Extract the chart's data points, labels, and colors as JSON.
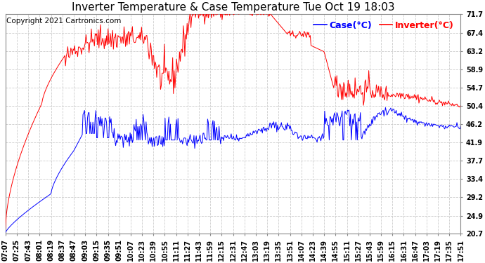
{
  "title": "Inverter Temperature & Case Temperature Tue Oct 19 18:03",
  "copyright": "Copyright 2021 Cartronics.com",
  "legend_case": "Case(°C)",
  "legend_inverter": "Inverter(°C)",
  "case_color": "blue",
  "inverter_color": "red",
  "ylim": [
    20.7,
    71.7
  ],
  "yticks": [
    20.7,
    24.9,
    29.2,
    33.4,
    37.7,
    41.9,
    46.2,
    50.4,
    54.7,
    58.9,
    63.2,
    67.4,
    71.7
  ],
  "plot_bg_color": "#ffffff",
  "fig_bg_color": "#ffffff",
  "grid_color": "#cccccc",
  "title_fontsize": 11,
  "tick_fontsize": 7,
  "legend_fontsize": 9,
  "copyright_fontsize": 7.5,
  "xtick_labels": [
    "07:07",
    "07:25",
    "07:43",
    "08:01",
    "08:19",
    "08:37",
    "08:47",
    "09:03",
    "09:15",
    "09:35",
    "09:51",
    "10:07",
    "10:23",
    "10:39",
    "10:55",
    "11:11",
    "11:27",
    "11:43",
    "11:59",
    "12:15",
    "12:31",
    "12:47",
    "13:03",
    "13:19",
    "13:35",
    "13:51",
    "14:07",
    "14:23",
    "14:39",
    "14:55",
    "15:11",
    "15:27",
    "15:43",
    "15:59",
    "16:15",
    "16:31",
    "16:47",
    "17:03",
    "17:19",
    "17:35",
    "17:51"
  ]
}
